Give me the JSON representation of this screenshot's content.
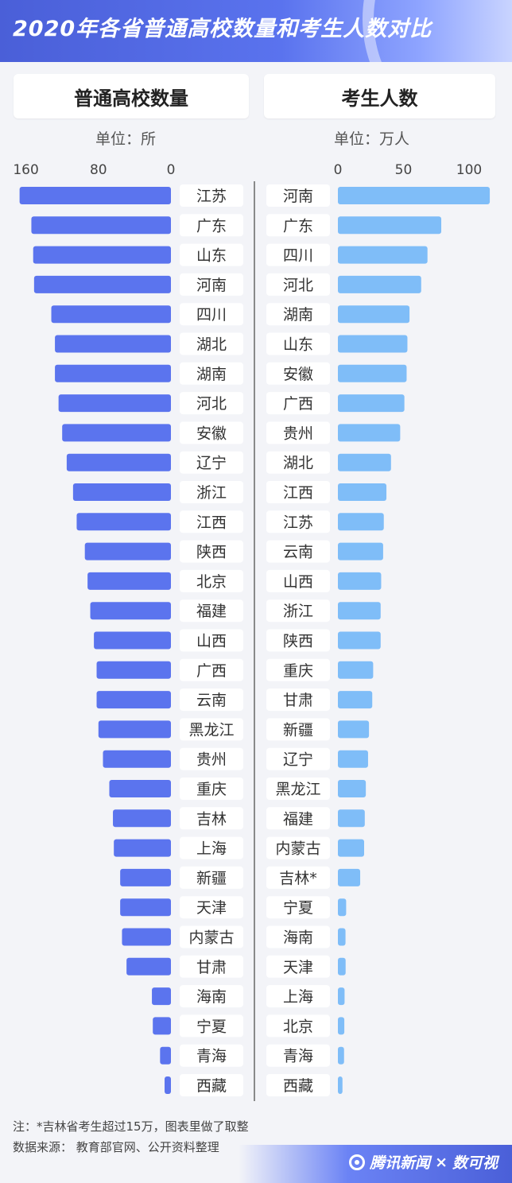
{
  "title": "2020年各省普通高校数量和考生人数对比",
  "left_panel": {
    "header": "普通高校数量",
    "unit": "单位：所"
  },
  "right_panel": {
    "header": "考生人数",
    "unit": "单位：万人"
  },
  "notes": [
    "注：*吉林省考生超过15万，图表里做了取整",
    "数据来源：  教育部官网、公开资料整理"
  ],
  "brand": {
    "name": "腾讯新闻",
    "separator": "×",
    "partner": "数可视"
  },
  "colors": {
    "left_bar": "#5b74ee",
    "right_bar": "#7fbdf8",
    "banner": "#4a5fd8"
  },
  "chart_data": [
    {
      "type": "bar",
      "orientation": "horizontal",
      "direction": "right-to-left",
      "title": "普通高校数量",
      "unit": "单位：所",
      "xlim": [
        160,
        0
      ],
      "ticks": [
        160,
        80,
        0
      ],
      "categories": [
        "江苏",
        "广东",
        "山东",
        "河南",
        "四川",
        "湖北",
        "湖南",
        "河北",
        "安徽",
        "辽宁",
        "浙江",
        "江西",
        "陕西",
        "北京",
        "福建",
        "山西",
        "广西",
        "云南",
        "黑龙江",
        "贵州",
        "重庆",
        "吉林",
        "上海",
        "新疆",
        "天津",
        "内蒙古",
        "甘肃",
        "海南",
        "宁夏",
        "青海",
        "西藏"
      ],
      "values": [
        167,
        154,
        152,
        151,
        132,
        128,
        128,
        124,
        120,
        115,
        108,
        104,
        95,
        92,
        89,
        85,
        82,
        82,
        80,
        75,
        68,
        64,
        63,
        56,
        56,
        54,
        49,
        21,
        20,
        12,
        7
      ]
    },
    {
      "type": "bar",
      "orientation": "horizontal",
      "title": "考生人数",
      "unit": "单位：万人",
      "xlim": [
        0,
        115
      ],
      "ticks": [
        0,
        50,
        100
      ],
      "categories": [
        "河南",
        "广东",
        "四川",
        "河北",
        "湖南",
        "山东",
        "安徽",
        "广西",
        "贵州",
        "湖北",
        "江西",
        "江苏",
        "云南",
        "山西",
        "浙江",
        "陕西",
        "重庆",
        "甘肃",
        "新疆",
        "辽宁",
        "黑龙江",
        "福建",
        "内蒙古",
        "吉林*",
        "宁夏",
        "海南",
        "天津",
        "上海",
        "北京",
        "青海",
        "西藏"
      ],
      "values": [
        115.8,
        78.8,
        68.3,
        63.5,
        54.6,
        53.0,
        52.4,
        50.7,
        47.5,
        40.5,
        37.0,
        35.0,
        34.5,
        33.0,
        32.6,
        32.6,
        26.9,
        26.2,
        23.7,
        23.0,
        21.3,
        20.5,
        20.0,
        17.0,
        6.3,
        5.8,
        5.9,
        5.1,
        4.9,
        4.7,
        3.5
      ]
    }
  ]
}
